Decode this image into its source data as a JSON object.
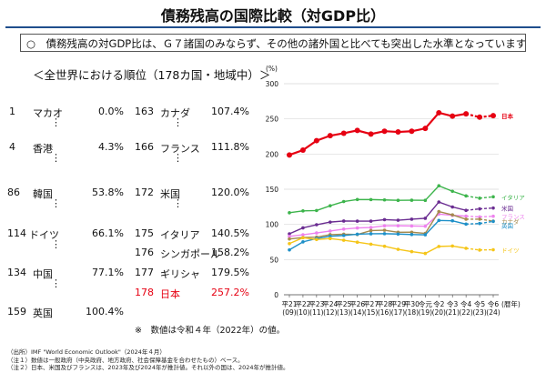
{
  "title": "債務残高の国際比較（対GDP比）",
  "summary": "○　債務残高の対GDP比は、Ｇ７諸国のみならず、その他の諸外国と比べても突出した水準となっています。",
  "ranking": {
    "heading": "＜全世界における順位（178カ国・地域中）＞",
    "left": [
      {
        "rank": "1",
        "name": "マカオ",
        "value": "0.0%"
      },
      {
        "rank": "4",
        "name": "香港",
        "value": "4.3%"
      },
      {
        "rank": "86",
        "name": "韓国",
        "value": "53.8%"
      },
      {
        "rank": "114",
        "name": "ドイツ",
        "value": "66.1%"
      },
      {
        "rank": "134",
        "name": "中国",
        "value": "77.1%"
      },
      {
        "rank": "159",
        "name": "英国",
        "value": "100.4%"
      }
    ],
    "right": [
      {
        "rank": "163",
        "name": "カナダ",
        "value": "107.4%"
      },
      {
        "rank": "166",
        "name": "フランス",
        "value": "111.8%"
      },
      {
        "rank": "172",
        "name": "米国",
        "value": "120.0%"
      },
      {
        "rank": "175",
        "name": "イタリア",
        "value": "140.5%"
      },
      {
        "rank": "176",
        "name": "シンガポール",
        "value": "158.2%"
      },
      {
        "rank": "177",
        "name": "ギリシャ",
        "value": "179.5%"
      },
      {
        "rank": "178",
        "name": "日本",
        "value": "257.2%"
      }
    ],
    "ellipsis": "⋮",
    "note": "※　数値は令和４年（2022年）の値。"
  },
  "sources": [
    "（出所）IMF \"World Economic Outlook\"（2024年４月）",
    "（注１）数値は一般政府（中央政府、地方政府、社会保障基金を合わせたもの）ベース。",
    "（注２）日本、米国及びフランスは、2023年及び2024年が推計値。それ以外の国は、2024年が推計値。"
  ],
  "colors": {
    "title_rule": "#1f4e8c",
    "日本": "#e60012",
    "イタリア": "#3cb44b",
    "米国": "#6a2c91",
    "フランス": "#ee82ee",
    "カナダ": "#a58a4e",
    "英国": "#1e90c8",
    "ドイツ": "#f5c518"
  },
  "chart_data": {
    "type": "line",
    "ylabel": "(%)",
    "xunit": "(暦年)",
    "ylim": [
      0,
      300
    ],
    "yticks": [
      0,
      50,
      100,
      150,
      200,
      250,
      300
    ],
    "x": [
      "平21",
      "平22",
      "平23",
      "平24",
      "平25",
      "平26",
      "平27",
      "平28",
      "平29",
      "平30",
      "令元",
      "令2",
      "令3",
      "令4",
      "令5",
      "令6"
    ],
    "x_sub": [
      "(09)",
      "(10)",
      "(11)",
      "(12)",
      "(13)",
      "(14)",
      "(15)",
      "(16)",
      "(17)",
      "(18)",
      "(19)",
      "(20)",
      "(21)",
      "(22)",
      "(23)",
      "(24)"
    ],
    "estimate_start": "令5",
    "series": [
      {
        "name": "日本",
        "values": [
          198.7,
          205.6,
          219.1,
          226.1,
          229.6,
          233.5,
          228.4,
          232.5,
          231.4,
          232.4,
          236.4,
          258.7,
          253.9,
          257.2,
          252.4,
          254.6
        ]
      },
      {
        "name": "イタリア",
        "values": [
          116.6,
          119.2,
          119.7,
          126.5,
          132.5,
          135.4,
          135.3,
          134.8,
          134.2,
          134.4,
          134.2,
          154.9,
          147.1,
          140.5,
          137.3,
          139.2
        ]
      },
      {
        "name": "米国",
        "values": [
          86.6,
          95.1,
          99.5,
          103.3,
          104.8,
          104.6,
          104.6,
          106.8,
          106.0,
          107.4,
          108.7,
          131.8,
          124.8,
          120.0,
          122.1,
          123.3
        ]
      },
      {
        "name": "フランス",
        "values": [
          83.0,
          85.3,
          87.8,
          90.6,
          93.4,
          94.9,
          95.6,
          98.0,
          98.1,
          97.8,
          97.4,
          114.7,
          112.9,
          111.8,
          110.6,
          111.6
        ]
      },
      {
        "name": "カナダ",
        "values": [
          79.3,
          81.3,
          81.9,
          85.4,
          86.1,
          85.6,
          91.2,
          91.7,
          88.8,
          88.9,
          87.2,
          118.2,
          113.5,
          107.4,
          107.5,
          104.7
        ]
      },
      {
        "name": "英国",
        "values": [
          63.8,
          75.2,
          80.0,
          83.2,
          84.2,
          86.1,
          86.7,
          86.8,
          86.3,
          85.6,
          85.2,
          105.6,
          105.1,
          100.4,
          101.3,
          104.3
        ]
      },
      {
        "name": "ドイツ",
        "values": [
          72.7,
          81.0,
          78.5,
          79.9,
          77.5,
          74.7,
          71.9,
          69.0,
          64.6,
          61.3,
          58.7,
          68.7,
          69.3,
          66.1,
          63.6,
          64.0
        ]
      }
    ]
  }
}
